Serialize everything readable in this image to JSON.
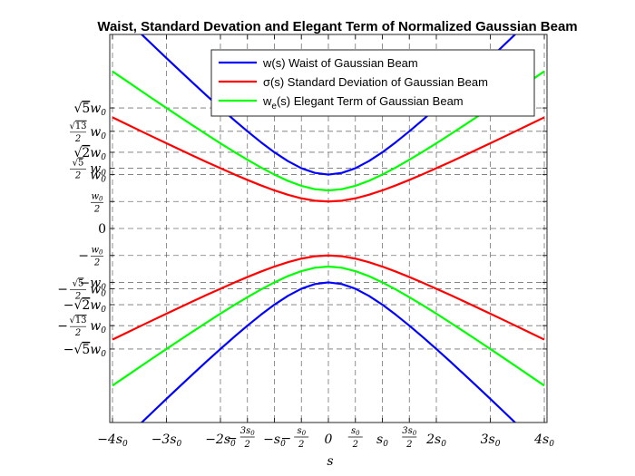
{
  "chart_data": {
    "type": "line",
    "title": "Waist, Standard Devation and Elegant Term of Normalized Gaussian Beam",
    "xlabel": "s",
    "ylabel": "",
    "xlim": [
      -4.05,
      4.05
    ],
    "ylim": [
      -3.6,
      3.6
    ],
    "grid": true,
    "grid_style": "dashed",
    "legend_position": "top-right",
    "x": [
      -4.0,
      -3.75,
      -3.5,
      -3.25,
      -3.0,
      -2.75,
      -2.5,
      -2.25,
      -2.0,
      -1.75,
      -1.5,
      -1.25,
      -1.0,
      -0.75,
      -0.5,
      -0.25,
      0.0,
      0.25,
      0.5,
      0.75,
      1.0,
      1.25,
      1.5,
      1.75,
      2.0,
      2.25,
      2.5,
      2.75,
      3.0,
      3.25,
      3.5,
      3.75,
      4.0
    ],
    "x_ticks": [
      {
        "value": -4,
        "text": "−4s",
        "sub": "0"
      },
      {
        "value": -3,
        "text": "−3s",
        "sub": "0"
      },
      {
        "value": -2,
        "text": "−2s",
        "sub": "0"
      },
      {
        "value": -1.5,
        "num": "3s",
        "numsub": "0",
        "prefix": "−",
        "den": "2"
      },
      {
        "value": -1,
        "text": "−s",
        "sub": "0"
      },
      {
        "value": -0.5,
        "num": "s",
        "numsub": "0",
        "prefix": "−",
        "den": "2"
      },
      {
        "value": 0,
        "text": "0",
        "sub": ""
      },
      {
        "value": 0.5,
        "num": "s",
        "numsub": "0",
        "prefix": "",
        "den": "2"
      },
      {
        "value": 1,
        "text": "s",
        "sub": "0"
      },
      {
        "value": 1.5,
        "num": "3s",
        "numsub": "0",
        "prefix": "",
        "den": "2"
      },
      {
        "value": 2,
        "text": "2s",
        "sub": "0"
      },
      {
        "value": 3,
        "text": "3s",
        "sub": "0"
      },
      {
        "value": 4,
        "text": "4s",
        "sub": "0"
      }
    ],
    "y_ticks": [
      {
        "value": 2.2360679775,
        "kind": "sqrt",
        "coef": "",
        "rad": "5",
        "over": "",
        "prefix": ""
      },
      {
        "value": 1.8027756377,
        "kind": "sqrtfrac",
        "rad": "13",
        "den": "2",
        "prefix": ""
      },
      {
        "value": 1.4142135624,
        "kind": "sqrt",
        "coef": "",
        "rad": "2",
        "prefix": ""
      },
      {
        "value": 1.1180339887,
        "kind": "sqrtfrac",
        "rad": "5",
        "den": "2",
        "prefix": ""
      },
      {
        "value": 1.0,
        "kind": "plain",
        "text": "w",
        "sub": "0",
        "prefix": ""
      },
      {
        "value": 0.5,
        "kind": "frac",
        "num": "w",
        "numsub": "0",
        "den": "2",
        "prefix": ""
      },
      {
        "value": 0.0,
        "kind": "zero",
        "text": "0"
      },
      {
        "value": -0.5,
        "kind": "frac",
        "num": "w",
        "numsub": "0",
        "den": "2",
        "prefix": "−"
      },
      {
        "value": -1.0,
        "kind": "plain",
        "text": "−w",
        "sub": "0",
        "prefix": ""
      },
      {
        "value": -1.1180339887,
        "kind": "sqrtfrac",
        "rad": "5",
        "den": "2",
        "prefix": "−"
      },
      {
        "value": -1.4142135624,
        "kind": "sqrt",
        "rad": "2",
        "prefix": "−"
      },
      {
        "value": -1.8027756377,
        "kind": "sqrtfrac",
        "rad": "13",
        "den": "2",
        "prefix": "−"
      },
      {
        "value": -2.2360679775,
        "kind": "sqrt",
        "rad": "5",
        "prefix": "−"
      }
    ],
    "series": [
      {
        "name": "w(s) Waist of Gaussian Beam",
        "legend_parts": [
          {
            "t": "w(s) Waist of Gaussian Beam",
            "sub": false
          }
        ],
        "color": "#0000ff",
        "upper": [
          4.123,
          3.881,
          3.64,
          3.4,
          3.162,
          2.926,
          2.693,
          2.462,
          2.236,
          2.016,
          1.803,
          1.601,
          1.414,
          1.25,
          1.118,
          1.031,
          1.0,
          1.031,
          1.118,
          1.25,
          1.414,
          1.601,
          1.803,
          2.016,
          2.236,
          2.462,
          2.693,
          2.926,
          3.162,
          3.4,
          3.64,
          3.881,
          4.123
        ],
        "lower": [
          -4.123,
          -3.881,
          -3.64,
          -3.4,
          -3.162,
          -2.926,
          -2.693,
          -2.462,
          -2.236,
          -2.016,
          -1.803,
          -1.601,
          -1.414,
          -1.25,
          -1.118,
          -1.031,
          -1.0,
          -1.031,
          -1.118,
          -1.25,
          -1.414,
          -1.601,
          -1.803,
          -2.016,
          -2.236,
          -2.462,
          -2.693,
          -2.926,
          -3.162,
          -3.4,
          -3.64,
          -3.881,
          -4.123
        ]
      },
      {
        "name": "σ(s) Standard Deviation of Gaussian Beam",
        "legend_parts": [
          {
            "t": "σ(s) Standard Deviation of Gaussian Beam",
            "sub": false
          }
        ],
        "color": "#ff0000",
        "upper": [
          2.062,
          1.941,
          1.82,
          1.7,
          1.581,
          1.463,
          1.346,
          1.231,
          1.118,
          1.008,
          0.901,
          0.8,
          0.707,
          0.625,
          0.559,
          0.515,
          0.5,
          0.515,
          0.559,
          0.625,
          0.707,
          0.8,
          0.901,
          1.008,
          1.118,
          1.231,
          1.346,
          1.463,
          1.581,
          1.7,
          1.82,
          1.941,
          2.062
        ],
        "lower": [
          -2.062,
          -1.941,
          -1.82,
          -1.7,
          -1.581,
          -1.463,
          -1.346,
          -1.231,
          -1.118,
          -1.008,
          -0.901,
          -0.8,
          -0.707,
          -0.625,
          -0.559,
          -0.515,
          -0.5,
          -0.515,
          -0.559,
          -0.625,
          -0.707,
          -0.8,
          -0.901,
          -1.008,
          -1.118,
          -1.231,
          -1.346,
          -1.463,
          -1.581,
          -1.7,
          -1.82,
          -1.941,
          -2.062
        ]
      },
      {
        "name": "we(s) Elegant Term of Gaussian Beam",
        "legend_parts": [
          {
            "t": "w",
            "sub": false
          },
          {
            "t": "e",
            "sub": true
          },
          {
            "t": "(s) Elegant Term of Gaussian Beam",
            "sub": false
          }
        ],
        "color": "#00ff00",
        "upper": [
          2.915,
          2.745,
          2.574,
          2.404,
          2.236,
          2.069,
          1.904,
          1.741,
          1.581,
          1.425,
          1.275,
          1.132,
          1.0,
          0.884,
          0.791,
          0.729,
          0.707,
          0.729,
          0.791,
          0.884,
          1.0,
          1.132,
          1.275,
          1.425,
          1.581,
          1.741,
          1.904,
          2.069,
          2.236,
          2.404,
          2.574,
          2.745,
          2.915
        ],
        "lower": [
          -2.915,
          -2.745,
          -2.574,
          -2.404,
          -2.236,
          -2.069,
          -1.904,
          -1.741,
          -1.581,
          -1.425,
          -1.275,
          -1.132,
          -1.0,
          -0.884,
          -0.791,
          -0.729,
          -0.707,
          -0.729,
          -0.791,
          -0.884,
          -1.0,
          -1.132,
          -1.275,
          -1.425,
          -1.581,
          -1.741,
          -1.904,
          -2.069,
          -2.236,
          -2.404,
          -2.574,
          -2.745,
          -2.915
        ]
      }
    ]
  }
}
